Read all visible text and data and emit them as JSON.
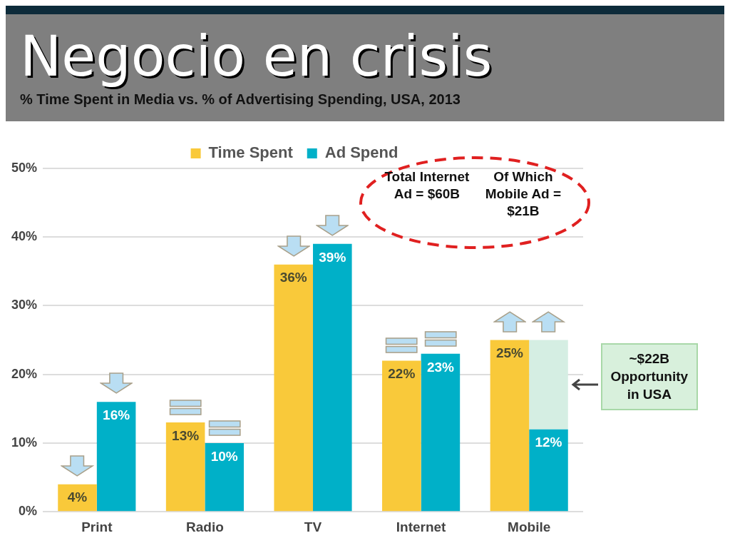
{
  "chart_data": {
    "type": "bar",
    "title": "Negocio en crisis",
    "subtitle": "% Time Spent in Media vs. % of Advertising Spending, USA, 2013",
    "categories": [
      "Print",
      "Radio",
      "TV",
      "Internet",
      "Mobile"
    ],
    "series": [
      {
        "name": "Time Spent",
        "color": "#f9c93a",
        "values": [
          4,
          13,
          36,
          22,
          25
        ],
        "value_labels": [
          "4%",
          "13%",
          "36%",
          "22%",
          "25%"
        ]
      },
      {
        "name": "Ad Spend",
        "color": "#00b0c8",
        "values": [
          16,
          10,
          39,
          23,
          12
        ],
        "value_labels": [
          "16%",
          "10%",
          "39%",
          "23%",
          "12%"
        ]
      },
      {
        "color": "#d5eee3",
        "values": [
          null,
          null,
          null,
          null,
          13
        ],
        "base": [
          null,
          null,
          null,
          null,
          12
        ]
      }
    ],
    "ylim": [
      0,
      50
    ],
    "yticks": [
      {
        "value": 0,
        "label": "0%"
      },
      {
        "value": 10,
        "label": "10%"
      },
      {
        "value": 20,
        "label": "20%"
      },
      {
        "value": 30,
        "label": "30%"
      },
      {
        "value": 40,
        "label": "40%"
      },
      {
        "value": 50,
        "label": "50%"
      }
    ],
    "grid": "y",
    "legend": "top",
    "annotations": [
      "Total Internet Ad = $60B",
      "Of Which Mobile Ad = $21B",
      "~$22B Opportunity in USA"
    ]
  }
}
